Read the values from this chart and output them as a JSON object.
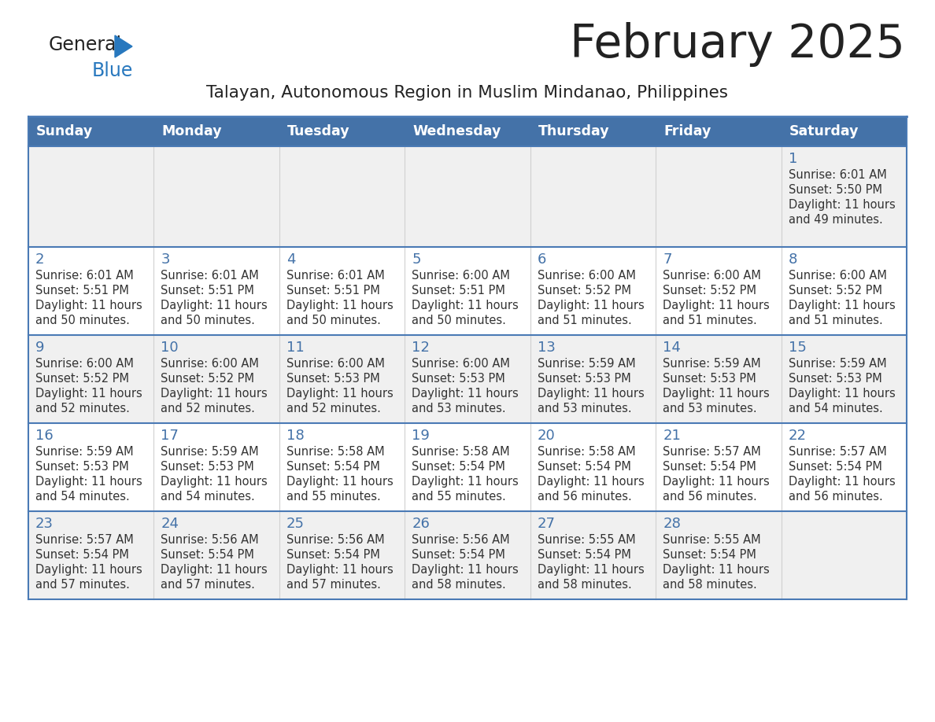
{
  "title": "February 2025",
  "subtitle": "Talayan, Autonomous Region in Muslim Mindanao, Philippines",
  "title_color": "#222222",
  "subtitle_color": "#222222",
  "header_bg_color": "#4472a8",
  "header_text_color": "#ffffff",
  "row0_bg": "#f0f0f0",
  "row1_bg": "#ffffff",
  "row2_bg": "#f0f0f0",
  "row3_bg": "#ffffff",
  "row4_bg": "#f0f0f0",
  "day_number_color": "#4472a8",
  "cell_text_color": "#333333",
  "border_color": "#4a7ab5",
  "days_of_week": [
    "Sunday",
    "Monday",
    "Tuesday",
    "Wednesday",
    "Thursday",
    "Friday",
    "Saturday"
  ],
  "logo_general_color": "#222222",
  "logo_blue_color": "#2878be",
  "calendar_data": [
    {
      "day": 1,
      "col": 6,
      "row": 0,
      "sunrise": "6:01 AM",
      "sunset": "5:50 PM",
      "daylight_min": "49"
    },
    {
      "day": 2,
      "col": 0,
      "row": 1,
      "sunrise": "6:01 AM",
      "sunset": "5:51 PM",
      "daylight_min": "50"
    },
    {
      "day": 3,
      "col": 1,
      "row": 1,
      "sunrise": "6:01 AM",
      "sunset": "5:51 PM",
      "daylight_min": "50"
    },
    {
      "day": 4,
      "col": 2,
      "row": 1,
      "sunrise": "6:01 AM",
      "sunset": "5:51 PM",
      "daylight_min": "50"
    },
    {
      "day": 5,
      "col": 3,
      "row": 1,
      "sunrise": "6:00 AM",
      "sunset": "5:51 PM",
      "daylight_min": "50"
    },
    {
      "day": 6,
      "col": 4,
      "row": 1,
      "sunrise": "6:00 AM",
      "sunset": "5:52 PM",
      "daylight_min": "51"
    },
    {
      "day": 7,
      "col": 5,
      "row": 1,
      "sunrise": "6:00 AM",
      "sunset": "5:52 PM",
      "daylight_min": "51"
    },
    {
      "day": 8,
      "col": 6,
      "row": 1,
      "sunrise": "6:00 AM",
      "sunset": "5:52 PM",
      "daylight_min": "51"
    },
    {
      "day": 9,
      "col": 0,
      "row": 2,
      "sunrise": "6:00 AM",
      "sunset": "5:52 PM",
      "daylight_min": "52"
    },
    {
      "day": 10,
      "col": 1,
      "row": 2,
      "sunrise": "6:00 AM",
      "sunset": "5:52 PM",
      "daylight_min": "52"
    },
    {
      "day": 11,
      "col": 2,
      "row": 2,
      "sunrise": "6:00 AM",
      "sunset": "5:53 PM",
      "daylight_min": "52"
    },
    {
      "day": 12,
      "col": 3,
      "row": 2,
      "sunrise": "6:00 AM",
      "sunset": "5:53 PM",
      "daylight_min": "53"
    },
    {
      "day": 13,
      "col": 4,
      "row": 2,
      "sunrise": "5:59 AM",
      "sunset": "5:53 PM",
      "daylight_min": "53"
    },
    {
      "day": 14,
      "col": 5,
      "row": 2,
      "sunrise": "5:59 AM",
      "sunset": "5:53 PM",
      "daylight_min": "53"
    },
    {
      "day": 15,
      "col": 6,
      "row": 2,
      "sunrise": "5:59 AM",
      "sunset": "5:53 PM",
      "daylight_min": "54"
    },
    {
      "day": 16,
      "col": 0,
      "row": 3,
      "sunrise": "5:59 AM",
      "sunset": "5:53 PM",
      "daylight_min": "54"
    },
    {
      "day": 17,
      "col": 1,
      "row": 3,
      "sunrise": "5:59 AM",
      "sunset": "5:53 PM",
      "daylight_min": "54"
    },
    {
      "day": 18,
      "col": 2,
      "row": 3,
      "sunrise": "5:58 AM",
      "sunset": "5:54 PM",
      "daylight_min": "55"
    },
    {
      "day": 19,
      "col": 3,
      "row": 3,
      "sunrise": "5:58 AM",
      "sunset": "5:54 PM",
      "daylight_min": "55"
    },
    {
      "day": 20,
      "col": 4,
      "row": 3,
      "sunrise": "5:58 AM",
      "sunset": "5:54 PM",
      "daylight_min": "56"
    },
    {
      "day": 21,
      "col": 5,
      "row": 3,
      "sunrise": "5:57 AM",
      "sunset": "5:54 PM",
      "daylight_min": "56"
    },
    {
      "day": 22,
      "col": 6,
      "row": 3,
      "sunrise": "5:57 AM",
      "sunset": "5:54 PM",
      "daylight_min": "56"
    },
    {
      "day": 23,
      "col": 0,
      "row": 4,
      "sunrise": "5:57 AM",
      "sunset": "5:54 PM",
      "daylight_min": "57"
    },
    {
      "day": 24,
      "col": 1,
      "row": 4,
      "sunrise": "5:56 AM",
      "sunset": "5:54 PM",
      "daylight_min": "57"
    },
    {
      "day": 25,
      "col": 2,
      "row": 4,
      "sunrise": "5:56 AM",
      "sunset": "5:54 PM",
      "daylight_min": "57"
    },
    {
      "day": 26,
      "col": 3,
      "row": 4,
      "sunrise": "5:56 AM",
      "sunset": "5:54 PM",
      "daylight_min": "58"
    },
    {
      "day": 27,
      "col": 4,
      "row": 4,
      "sunrise": "5:55 AM",
      "sunset": "5:54 PM",
      "daylight_min": "58"
    },
    {
      "day": 28,
      "col": 5,
      "row": 4,
      "sunrise": "5:55 AM",
      "sunset": "5:54 PM",
      "daylight_min": "58"
    }
  ],
  "num_rows": 5,
  "num_cols": 7
}
